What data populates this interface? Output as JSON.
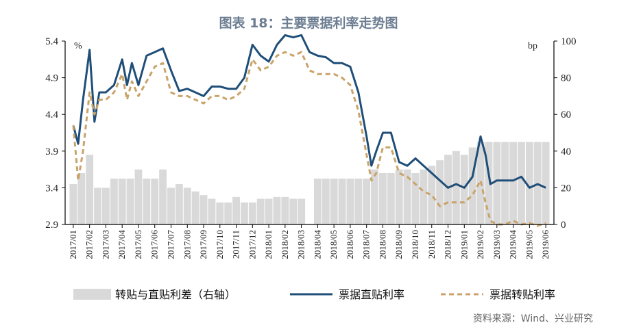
{
  "chart_data": {
    "type": "line",
    "title": "图表 18：主要票据利率走势图",
    "left_axis": {
      "unit": "%",
      "ylim": [
        2.9,
        5.4
      ],
      "ticks": [
        "5.4",
        "4.9",
        "4.4",
        "3.9",
        "3.4",
        "2.9"
      ]
    },
    "right_axis": {
      "unit": "bp",
      "ylim": [
        0,
        100
      ],
      "ticks": [
        "100",
        "80",
        "60",
        "40",
        "20",
        "0"
      ]
    },
    "x_ticks": [
      "2017/01",
      "2017/02",
      "2017/03",
      "2017/04",
      "2017/05",
      "2017/06",
      "2017/07",
      "2017/08",
      "2017/09",
      "2017/10",
      "2017/11",
      "2017/12",
      "2018/01",
      "2018/02",
      "2018/03",
      "2018/04",
      "2018/05",
      "2018/06",
      "2018/07",
      "2018/08",
      "2018/09",
      "2018/10",
      "2018/11",
      "2018/12",
      "2019/01",
      "2019/02",
      "2019/03",
      "2019/04",
      "2019/05",
      "2019/06"
    ],
    "series": [
      {
        "name": "转贴与直贴利差（右轴）",
        "type": "bar",
        "axis": "right",
        "color": "#d9d9d9",
        "x": [
          0,
          0.5,
          1,
          1.5,
          2,
          2.5,
          3,
          3.5,
          4,
          4.5,
          5,
          5.5,
          6,
          6.5,
          7,
          7.5,
          8,
          8.5,
          9,
          9.5,
          10,
          10.5,
          11,
          11.5,
          12,
          12.5,
          13,
          13.5,
          14,
          14.5,
          15,
          15.5,
          16,
          16.5,
          17,
          17.5,
          18,
          18.5,
          19,
          19.5,
          20,
          20.5,
          21,
          21.5,
          22,
          22.5,
          23,
          23.5,
          24,
          24.5,
          25,
          25.5,
          26,
          26.5,
          27,
          27.5,
          28,
          28.5,
          29
        ],
        "values": [
          22,
          28,
          38,
          20,
          20,
          25,
          25,
          25,
          30,
          25,
          25,
          30,
          20,
          22,
          20,
          18,
          16,
          14,
          12,
          12,
          15,
          12,
          12,
          14,
          14,
          15,
          15,
          14,
          14,
          0,
          25,
          25,
          25,
          25,
          25,
          25,
          25,
          30,
          28,
          28,
          30,
          30,
          28,
          30,
          32,
          35,
          38,
          40,
          38,
          42,
          45,
          45,
          45,
          45,
          45,
          45,
          45,
          45,
          45
        ]
      },
      {
        "name": "票据直贴利率",
        "type": "line",
        "axis": "left",
        "color": "#1f4e79",
        "x": [
          0,
          0.3,
          0.6,
          1,
          1.3,
          1.6,
          2,
          2.5,
          3,
          3.3,
          3.6,
          4,
          4.5,
          5,
          5.5,
          6,
          6.5,
          7,
          7.5,
          8,
          8.5,
          9,
          9.5,
          10,
          10.5,
          11,
          11.5,
          12,
          12.5,
          13,
          13.5,
          14,
          14.5,
          15,
          15.5,
          16,
          16.5,
          17,
          17.5,
          18,
          18.3,
          18.6,
          19,
          19.5,
          20,
          20.5,
          21,
          21.5,
          22,
          22.5,
          23,
          23.5,
          24,
          24.5,
          25,
          25.3,
          25.6,
          26,
          26.5,
          27,
          27.5,
          28,
          28.5,
          29
        ],
        "values": [
          4.25,
          4.0,
          4.6,
          5.28,
          4.3,
          4.7,
          4.7,
          4.8,
          5.15,
          4.8,
          5.1,
          4.8,
          5.2,
          5.25,
          5.3,
          5.0,
          4.72,
          4.75,
          4.7,
          4.65,
          4.78,
          4.78,
          4.75,
          4.75,
          4.9,
          5.35,
          5.2,
          5.12,
          5.35,
          5.48,
          5.45,
          5.48,
          5.25,
          5.2,
          5.18,
          5.1,
          5.1,
          5.05,
          4.7,
          4.1,
          3.7,
          3.9,
          4.15,
          4.15,
          3.75,
          3.7,
          3.8,
          3.7,
          3.6,
          3.5,
          3.4,
          3.45,
          3.4,
          3.55,
          4.1,
          3.85,
          3.45,
          3.5,
          3.5,
          3.5,
          3.55,
          3.4,
          3.45,
          3.4
        ]
      },
      {
        "name": "票据转贴利率",
        "type": "line",
        "axis": "left",
        "color": "#c9a36a",
        "dash": "dashed",
        "x": [
          0,
          0.3,
          0.6,
          1,
          1.3,
          1.6,
          2,
          2.5,
          3,
          3.3,
          3.6,
          4,
          4.5,
          5,
          5.5,
          6,
          6.5,
          7,
          7.5,
          8,
          8.5,
          9,
          9.5,
          10,
          10.5,
          11,
          11.5,
          12,
          12.5,
          13,
          13.5,
          14,
          14.5,
          15,
          15.5,
          16,
          16.5,
          17,
          17.5,
          18,
          18.3,
          18.6,
          19,
          19.5,
          20,
          20.5,
          21,
          21.5,
          22,
          22.5,
          23,
          23.5,
          24,
          24.5,
          25,
          25.3,
          25.6,
          26,
          26.5,
          27,
          27.5,
          28,
          28.5,
          29
        ],
        "values": [
          4.25,
          3.5,
          3.9,
          4.7,
          4.4,
          4.6,
          4.6,
          4.7,
          4.95,
          4.6,
          4.85,
          4.65,
          4.85,
          5.05,
          5.1,
          4.7,
          4.65,
          4.65,
          4.6,
          4.55,
          4.65,
          4.65,
          4.6,
          4.65,
          4.75,
          5.15,
          5.0,
          5.05,
          5.2,
          5.25,
          5.2,
          5.25,
          5.0,
          4.95,
          4.95,
          4.95,
          4.9,
          4.8,
          4.45,
          3.85,
          3.5,
          3.6,
          3.95,
          3.95,
          3.6,
          3.55,
          3.45,
          3.35,
          3.3,
          3.15,
          3.2,
          3.2,
          3.2,
          3.3,
          3.5,
          3.2,
          2.95,
          2.9,
          2.9,
          2.95,
          2.9,
          2.92,
          2.88,
          2.92
        ]
      }
    ]
  },
  "legend": {
    "bar_label": "转贴与直贴利差（右轴）",
    "line1_label": "票据直贴利率",
    "line2_label": "票据转贴利率"
  },
  "source": "资料来源：Wind、兴业研究"
}
